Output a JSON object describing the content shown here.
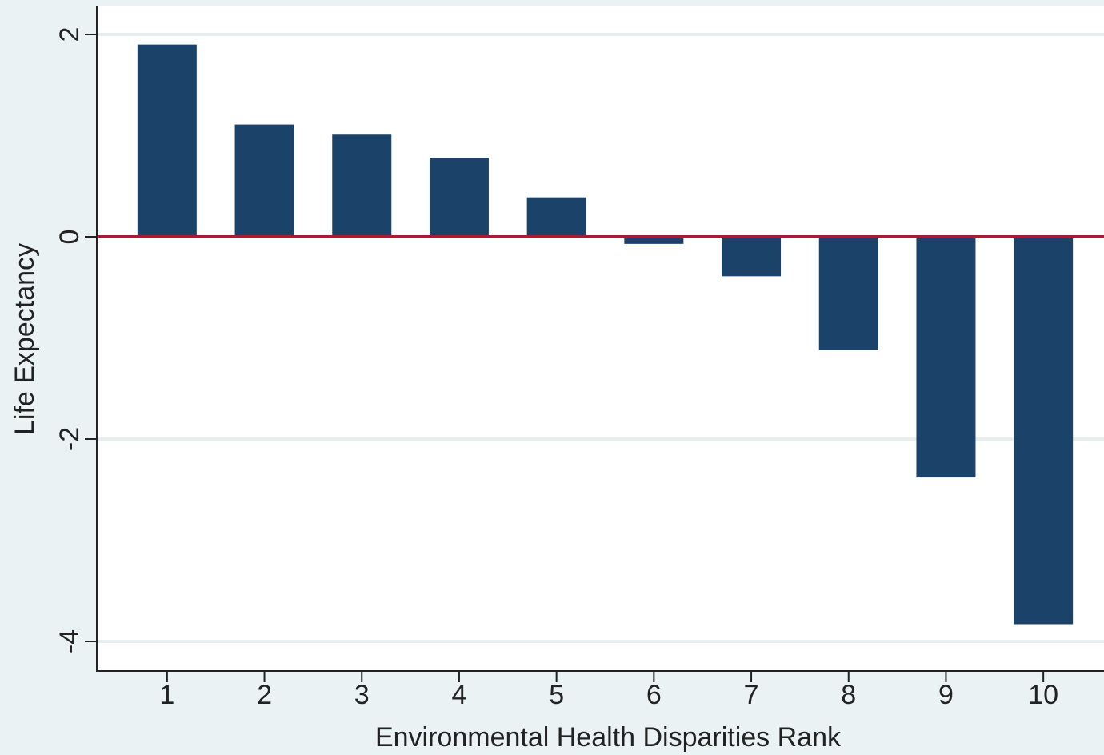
{
  "chart_data": {
    "type": "bar",
    "xlabel": "Environmental Health Disparities Rank",
    "ylabel": "Life Expectancy",
    "categories": [
      "1",
      "2",
      "3",
      "4",
      "5",
      "6",
      "7",
      "8",
      "9",
      "10"
    ],
    "values": [
      1.9,
      1.11,
      1.01,
      0.78,
      0.39,
      -0.07,
      -0.39,
      -1.12,
      -2.38,
      -3.83
    ],
    "ylim": [
      -4.3,
      2.3
    ],
    "yticks": [
      {
        "value": 2,
        "label": "2"
      },
      {
        "value": 0,
        "label": "0"
      },
      {
        "value": -2,
        "label": "-2"
      },
      {
        "value": -4,
        "label": "-4"
      }
    ],
    "reference_line": 0,
    "grid": true,
    "colors": {
      "bar": "#1b436a",
      "reference_line": "#a51c36",
      "plot_background": "#ffffff",
      "outer_background": "#eaf2f3",
      "grid": "#e6eef0"
    }
  }
}
